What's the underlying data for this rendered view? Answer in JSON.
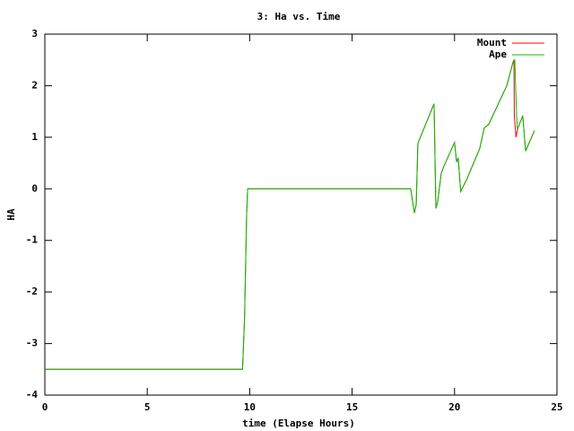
{
  "chart_data": {
    "type": "line",
    "title": "3: Ha vs. Time",
    "xlabel": "time (Elapse Hours)",
    "ylabel": "HA",
    "xlim": [
      0,
      25
    ],
    "xticks": [
      0,
      5,
      10,
      15,
      20,
      25
    ],
    "ylim": [
      -4,
      3
    ],
    "yticks": [
      -4,
      -3,
      -2,
      -1,
      0,
      1,
      2,
      3
    ],
    "legend": "top right",
    "series": [
      {
        "name": "Mount",
        "color": "#ff0000",
        "x": [
          0,
          9.65,
          9.75,
          9.85,
          9.9,
          17.86,
          18.04,
          18.13,
          18.21,
          19.0,
          19.09,
          19.18,
          19.35,
          19.44,
          20.0,
          20.1,
          20.18,
          20.3,
          20.58,
          21.23,
          21.45,
          21.67,
          22.55,
          22.85,
          22.9,
          22.92,
          23.0,
          23.07,
          23.33,
          23.47,
          23.9
        ],
        "values": [
          -3.5,
          -3.5,
          -2.5,
          -0.5,
          0,
          0,
          -0.47,
          -0.3,
          0.88,
          1.65,
          -0.38,
          -0.25,
          0.3,
          0.4,
          0.9,
          0.52,
          0.6,
          -0.05,
          0.17,
          0.78,
          1.18,
          1.25,
          2.0,
          2.45,
          2.5,
          1.4,
          1.0,
          1.15,
          1.42,
          0.73,
          1.13
        ]
      },
      {
        "name": "Ape",
        "color": "#00c000",
        "x": [
          0,
          9.65,
          9.75,
          9.85,
          9.9,
          17.86,
          18.04,
          18.13,
          18.21,
          19.0,
          19.09,
          19.18,
          19.35,
          19.44,
          20.0,
          20.1,
          20.18,
          20.3,
          20.58,
          21.23,
          21.45,
          21.67,
          22.55,
          22.85,
          22.94,
          23.03,
          23.07,
          23.33,
          23.47,
          23.9
        ],
        "values": [
          -3.5,
          -3.5,
          -2.5,
          -0.5,
          0,
          0,
          -0.47,
          -0.3,
          0.88,
          1.65,
          -0.38,
          -0.25,
          0.3,
          0.4,
          0.9,
          0.52,
          0.6,
          -0.05,
          0.17,
          0.78,
          1.18,
          1.25,
          2.0,
          2.45,
          2.5,
          1.4,
          1.15,
          1.42,
          0.73,
          1.13
        ]
      }
    ]
  }
}
